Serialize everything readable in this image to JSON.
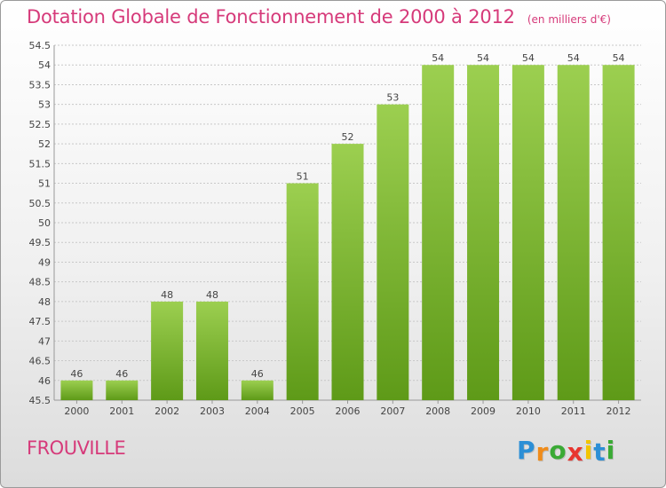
{
  "header": {
    "title": "Dotation Globale de Fonctionnement de 2000 à 2012",
    "unit": "(en milliers d'€)"
  },
  "footer": {
    "commune": "FROUVILLE"
  },
  "logo": {
    "letters": [
      "P",
      "r",
      "o",
      "x",
      "i",
      "t",
      "i"
    ],
    "colors": [
      "#2c8fd6",
      "#f08c1a",
      "#3aaa35",
      "#e8352f",
      "#f2c500",
      "#2c8fd6",
      "#3aaa35"
    ]
  },
  "colors": {
    "title": "#d63a7a",
    "bar_light": "#9ccf50",
    "bar_dark": "#5e9a18",
    "grid": "#c8c8c8"
  },
  "chart_data": {
    "type": "bar",
    "categories": [
      "2000",
      "2001",
      "2002",
      "2003",
      "2004",
      "2005",
      "2006",
      "2007",
      "2008",
      "2009",
      "2010",
      "2011",
      "2012"
    ],
    "values": [
      46,
      46,
      48,
      48,
      46,
      51,
      52,
      53,
      54,
      54,
      54,
      54,
      54
    ],
    "ylim": [
      45.5,
      54.5
    ],
    "yticks": [
      "45.5",
      "46",
      "46.5",
      "47",
      "47.5",
      "48",
      "48.5",
      "49",
      "49.5",
      "50",
      "50.5",
      "51",
      "51.5",
      "52",
      "52.5",
      "53",
      "53.5",
      "54",
      "54.5"
    ],
    "grid": true
  }
}
